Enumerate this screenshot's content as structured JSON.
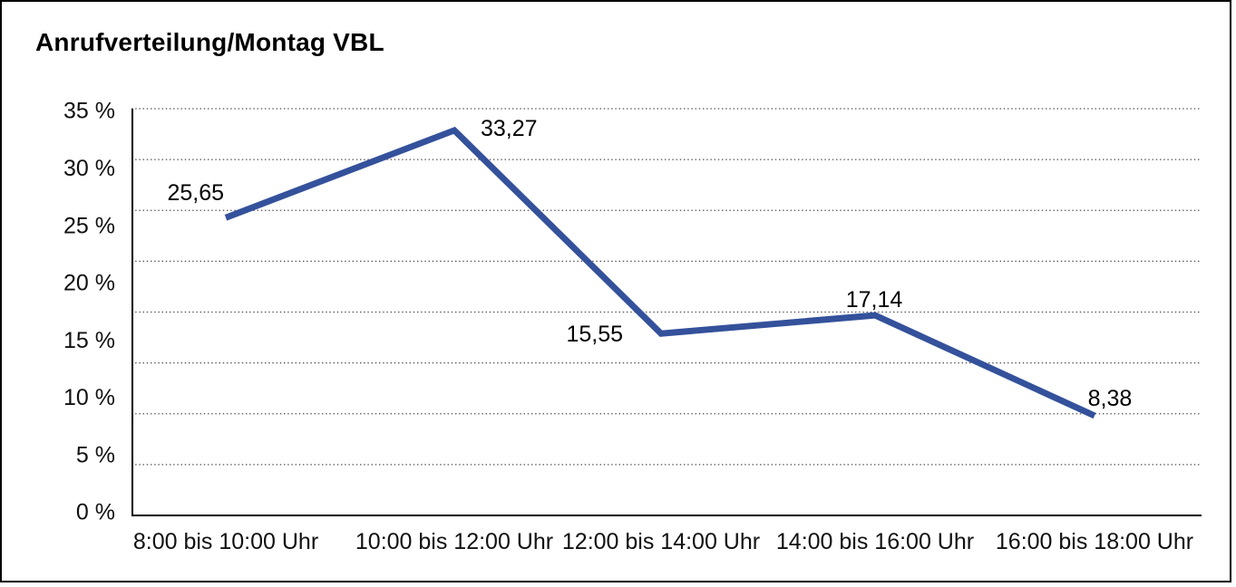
{
  "frame": {
    "background": "#ffffff",
    "border_color": "#000000"
  },
  "chart_data": {
    "type": "line",
    "title": "Anrufverteilung/Montag VBL",
    "categories": [
      "8:00 bis 10:00 Uhr",
      "10:00 bis 12:00 Uhr",
      "12:00 bis 14:00 Uhr",
      "14:00 bis 16:00 Uhr",
      "16:00 bis 18:00 Uhr"
    ],
    "values": [
      25.65,
      33.27,
      15.55,
      17.14,
      8.38
    ],
    "value_labels": [
      "25,65",
      "33,27",
      "15,55",
      "17,14",
      "8,38"
    ],
    "y_tick_labels": [
      "35 %",
      "30 %",
      "25 %",
      "20 %",
      "15 %",
      "10 %",
      "5 %",
      "0 %"
    ],
    "xlabel": "",
    "ylabel": "",
    "ylim": [
      0,
      35
    ],
    "y_tick_step": 5,
    "grid": "horizontal dotted",
    "legend": "none",
    "line_color": "#34519B",
    "axis_color": "#000000",
    "gridline_color": "#4d4d4d",
    "text_color": "#111111"
  }
}
